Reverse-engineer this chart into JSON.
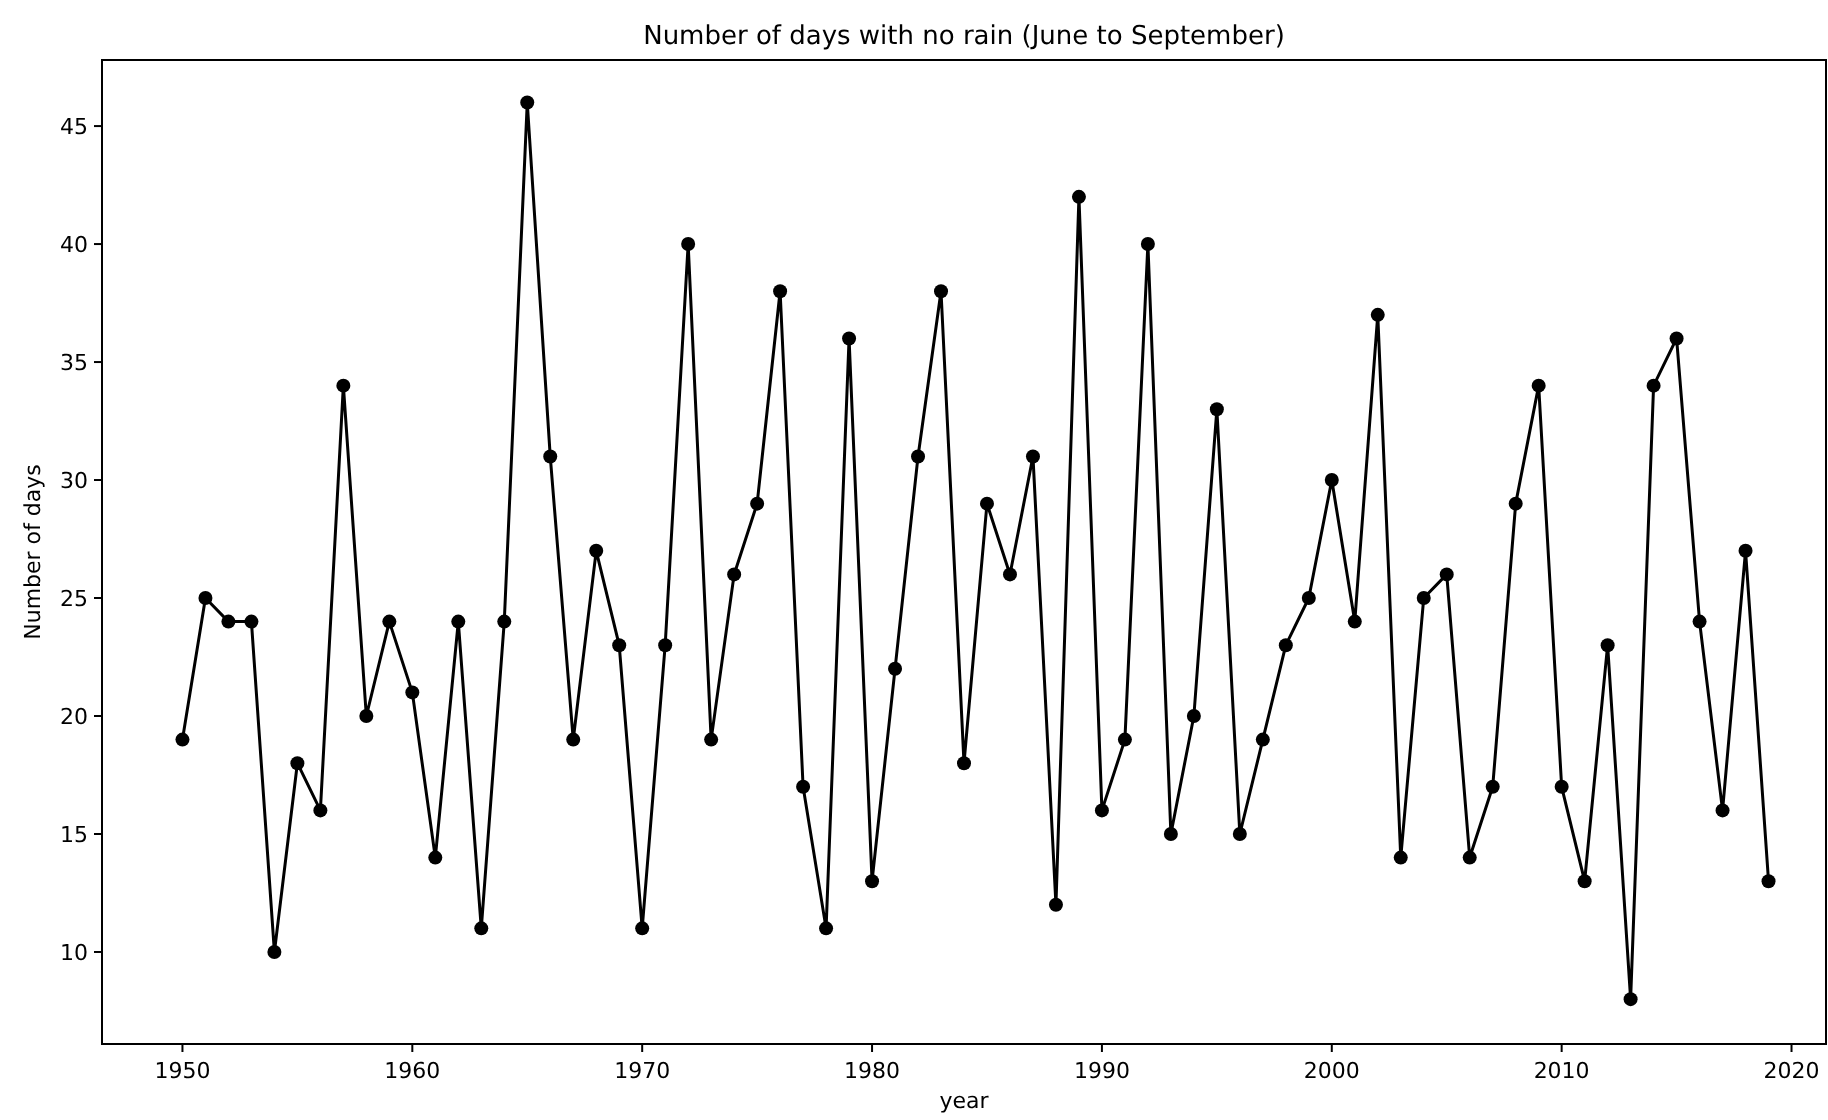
{
  "chart_data": {
    "type": "line",
    "title": "Number of days with no rain (June to September)",
    "xlabel": "year",
    "ylabel": "Number of days",
    "x": [
      1950,
      1951,
      1952,
      1953,
      1954,
      1955,
      1956,
      1957,
      1958,
      1959,
      1960,
      1961,
      1962,
      1963,
      1964,
      1965,
      1966,
      1967,
      1968,
      1969,
      1970,
      1971,
      1972,
      1973,
      1974,
      1975,
      1976,
      1977,
      1978,
      1979,
      1980,
      1981,
      1982,
      1983,
      1984,
      1985,
      1986,
      1987,
      1988,
      1989,
      1990,
      1991,
      1992,
      1993,
      1994,
      1995,
      1996,
      1997,
      1998,
      1999,
      2000,
      2001,
      2002,
      2003,
      2004,
      2005,
      2006,
      2007,
      2008,
      2009,
      2010,
      2011,
      2012,
      2013,
      2014,
      2015,
      2016,
      2017,
      2018,
      2019
    ],
    "series": [
      {
        "color": "#000000",
        "values": [
          19,
          25,
          24,
          24,
          10,
          18,
          16,
          34,
          20,
          24,
          21,
          14,
          24,
          11,
          24,
          46,
          31,
          19,
          27,
          23,
          11,
          23,
          40,
          19,
          26,
          29,
          38,
          17,
          11,
          36,
          13,
          22,
          31,
          38,
          18,
          29,
          26,
          31,
          12,
          42,
          16,
          19,
          40,
          15,
          20,
          33,
          15,
          19,
          23,
          25,
          30,
          24,
          37,
          14,
          25,
          26,
          14,
          17,
          29,
          34,
          17,
          13,
          23,
          8,
          34,
          36,
          24,
          16,
          27,
          13
        ]
      }
    ],
    "xlim": [
      1946.5,
      2021.5
    ],
    "xticks": [
      1950,
      1960,
      1970,
      1980,
      1990,
      2000,
      2010,
      2020
    ],
    "ylim": [
      6.1,
      47.8
    ],
    "yticks": [
      10,
      15,
      20,
      25,
      30,
      35,
      40,
      45
    ],
    "marker": "circle",
    "line_style": "solid"
  }
}
